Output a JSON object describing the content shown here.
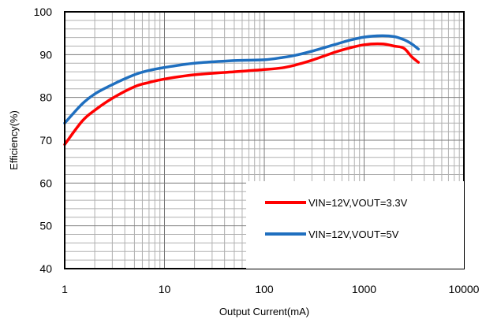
{
  "chart_data": {
    "type": "line",
    "title": "",
    "xlabel": "Output Current(mA)",
    "ylabel": "Efficiency(%)",
    "xscale": "log",
    "xlim": [
      1,
      10000
    ],
    "ylim": [
      40,
      100
    ],
    "xticks": [
      "1",
      "10",
      "100",
      "1000",
      "10000"
    ],
    "yticks": [
      "40",
      "50",
      "60",
      "70",
      "80",
      "90",
      "100"
    ],
    "grid": true,
    "legend_position": "bottom-right",
    "series": [
      {
        "name": "VIN=12V,VOUT=3.3V",
        "color": "#ff0000",
        "points": [
          [
            1,
            69
          ],
          [
            1.5,
            74.5
          ],
          [
            2,
            77
          ],
          [
            3,
            79.8
          ],
          [
            5,
            82.5
          ],
          [
            7,
            83.5
          ],
          [
            10,
            84.3
          ],
          [
            20,
            85.3
          ],
          [
            50,
            86
          ],
          [
            100,
            86.5
          ],
          [
            150,
            86.9
          ],
          [
            200,
            87.5
          ],
          [
            300,
            88.7
          ],
          [
            500,
            90.5
          ],
          [
            700,
            91.5
          ],
          [
            1000,
            92.3
          ],
          [
            1500,
            92.5
          ],
          [
            2000,
            92
          ],
          [
            2500,
            91.5
          ],
          [
            3000,
            89.5
          ],
          [
            3500,
            88.2
          ]
        ]
      },
      {
        "name": "VIN=12V,VOUT=5V",
        "color": "#1f6fbf",
        "points": [
          [
            1,
            74
          ],
          [
            1.5,
            78.5
          ],
          [
            2,
            80.8
          ],
          [
            3,
            83
          ],
          [
            5,
            85.3
          ],
          [
            7,
            86.3
          ],
          [
            10,
            87
          ],
          [
            20,
            88
          ],
          [
            50,
            88.6
          ],
          [
            100,
            88.8
          ],
          [
            150,
            89.3
          ],
          [
            200,
            89.8
          ],
          [
            300,
            90.8
          ],
          [
            500,
            92.3
          ],
          [
            700,
            93.3
          ],
          [
            1000,
            94.1
          ],
          [
            1500,
            94.4
          ],
          [
            2000,
            94.2
          ],
          [
            2500,
            93.5
          ],
          [
            3000,
            92.5
          ],
          [
            3500,
            91.3
          ]
        ]
      }
    ]
  }
}
